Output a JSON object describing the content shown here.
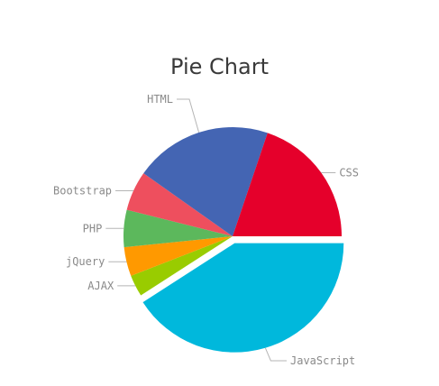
{
  "chart_data": {
    "type": "pie",
    "title": "Pie Chart",
    "categories": [
      "JavaScript",
      "AJAX",
      "jQuery",
      "PHP",
      "Bootstrap",
      "HTML",
      "CSS"
    ],
    "values": [
      40.9,
      3.2,
      4.3,
      5.5,
      5.9,
      20.4,
      19.8
    ],
    "exploded": [
      "JavaScript"
    ],
    "colors": [
      "#00b8dc",
      "#99cc00",
      "#ff9900",
      "#5cb85c",
      "#ee4f5e",
      "#4465b3",
      "#e5002b"
    ],
    "legend": "none"
  }
}
